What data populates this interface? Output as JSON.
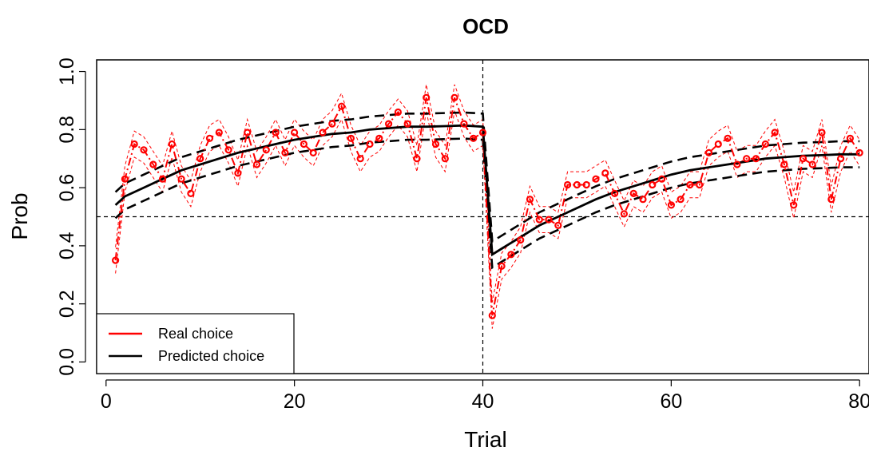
{
  "chart_data": {
    "type": "line",
    "title": "OCD",
    "xlabel": "Trial",
    "ylabel": "Prob",
    "xlim": [
      -1,
      81
    ],
    "ylim": [
      -0.04,
      1.04
    ],
    "xticks": [
      0,
      20,
      40,
      60,
      80
    ],
    "xtick_labels": [
      "0",
      "20",
      "40",
      "60",
      "80"
    ],
    "yticks": [
      0.0,
      0.2,
      0.4,
      0.6,
      0.8,
      1.0
    ],
    "ytick_labels": [
      "0.0",
      "0.2",
      "0.4",
      "0.6",
      "0.8",
      "1.0"
    ],
    "reference_lines": {
      "h": 0.5,
      "v": 40
    },
    "legend": {
      "placement": "bottom-left",
      "entries": [
        {
          "label": "Real choice",
          "color": "#ff0000"
        },
        {
          "label": "Predicted choice",
          "color": "#000000"
        }
      ]
    },
    "series": [
      {
        "name": "Real choice",
        "color": "#ff0000",
        "x": [
          1,
          2,
          3,
          4,
          5,
          6,
          7,
          8,
          9,
          10,
          11,
          12,
          13,
          14,
          15,
          16,
          17,
          18,
          19,
          20,
          21,
          22,
          23,
          24,
          25,
          26,
          27,
          28,
          29,
          30,
          31,
          32,
          33,
          34,
          35,
          36,
          37,
          38,
          39,
          40,
          41,
          42,
          43,
          44,
          45,
          46,
          47,
          48,
          49,
          50,
          51,
          52,
          53,
          54,
          55,
          56,
          57,
          58,
          59,
          60,
          61,
          62,
          63,
          64,
          65,
          66,
          67,
          68,
          69,
          70,
          71,
          72,
          73,
          74,
          75,
          76,
          77,
          78,
          79,
          80
        ],
        "values": [
          0.35,
          0.63,
          0.75,
          0.73,
          0.68,
          0.63,
          0.75,
          0.63,
          0.58,
          0.7,
          0.77,
          0.79,
          0.73,
          0.65,
          0.79,
          0.68,
          0.73,
          0.79,
          0.72,
          0.79,
          0.75,
          0.72,
          0.79,
          0.82,
          0.88,
          0.77,
          0.7,
          0.75,
          0.77,
          0.82,
          0.86,
          0.82,
          0.7,
          0.91,
          0.75,
          0.7,
          0.91,
          0.82,
          0.77,
          0.79,
          0.16,
          0.33,
          0.37,
          0.42,
          0.56,
          0.49,
          0.49,
          0.47,
          0.61,
          0.61,
          0.61,
          0.63,
          0.65,
          0.58,
          0.51,
          0.58,
          0.56,
          0.61,
          0.63,
          0.54,
          0.56,
          0.61,
          0.61,
          0.72,
          0.75,
          0.77,
          0.68,
          0.7,
          0.7,
          0.75,
          0.79,
          0.68,
          0.54,
          0.7,
          0.68,
          0.79,
          0.56,
          0.7,
          0.77,
          0.72
        ],
        "band_halfwidth": 0.045
      },
      {
        "name": "Predicted choice",
        "color": "#000000",
        "x": [
          1,
          2,
          4,
          6,
          8,
          10,
          12,
          14,
          16,
          18,
          20,
          22,
          24,
          26,
          28,
          30,
          32,
          34,
          36,
          38,
          40,
          41,
          42,
          44,
          46,
          48,
          50,
          52,
          54,
          56,
          58,
          60,
          62,
          64,
          66,
          68,
          70,
          72,
          74,
          76,
          78,
          80
        ],
        "values": [
          0.54,
          0.57,
          0.6,
          0.63,
          0.66,
          0.68,
          0.7,
          0.72,
          0.735,
          0.75,
          0.765,
          0.775,
          0.785,
          0.79,
          0.8,
          0.805,
          0.81,
          0.81,
          0.812,
          0.814,
          0.81,
          0.37,
          0.39,
          0.43,
          0.47,
          0.5,
          0.53,
          0.56,
          0.585,
          0.605,
          0.625,
          0.645,
          0.66,
          0.67,
          0.68,
          0.69,
          0.7,
          0.705,
          0.71,
          0.712,
          0.715,
          0.715
        ],
        "band_halfwidth": 0.045
      }
    ]
  }
}
